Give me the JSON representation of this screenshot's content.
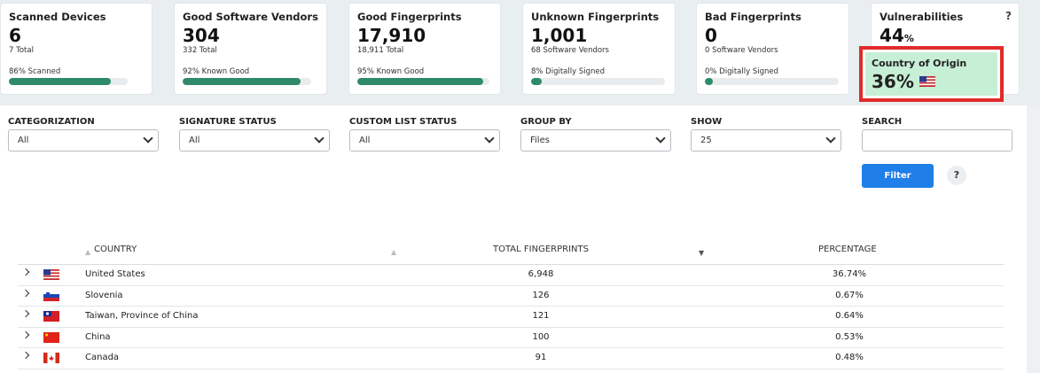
{
  "cards": [
    {
      "title": "Scanned Devices",
      "value": "6",
      "sub": "7 Total",
      "progress_label": "86% Scanned",
      "progress": 0.86
    },
    {
      "title": "Good Software Vendors",
      "value": "304",
      "sub": "332 Total",
      "progress_label": "92% Known Good",
      "progress": 0.92
    },
    {
      "title": "Good Fingerprints",
      "value": "17,910",
      "sub": "18,911 Total",
      "progress_label": "95% Known Good",
      "progress": 0.95
    },
    {
      "title": "Unknown Fingerprints",
      "value": "1,001",
      "sub": "68 Software Vendors",
      "progress_label": "8% Digitally Signed",
      "progress": 0.08
    },
    {
      "title": "Bad Fingerprints",
      "value": "0",
      "sub": "0 Software Vendors",
      "progress_label": "0% Digitally Signed",
      "progress": 0.0
    }
  ],
  "vulnerabilities": {
    "title": "Vulnerabilities",
    "value": "44",
    "unit": "%",
    "help": "?"
  },
  "origin": {
    "title": "Country of Origin",
    "value": "36",
    "unit": "%",
    "flag_icon": "us-flag-icon"
  },
  "filters": {
    "categorization": {
      "label": "CATEGORIZATION",
      "value": "All"
    },
    "signature_status": {
      "label": "SIGNATURE STATUS",
      "value": "All"
    },
    "custom_list_status": {
      "label": "CUSTOM LIST STATUS",
      "value": "All"
    },
    "group_by": {
      "label": "GROUP BY",
      "value": "Files"
    },
    "show": {
      "label": "SHOW",
      "value": "25"
    },
    "search": {
      "label": "SEARCH",
      "value": ""
    },
    "filter_button": "Filter",
    "help": "?"
  },
  "table": {
    "headers": {
      "country": "COUNTRY",
      "total": "TOTAL FINGERPRINTS",
      "percentage": "PERCENTAGE"
    },
    "rows": [
      {
        "country": "United States",
        "total": "6,948",
        "percentage": "36.74%",
        "flag": "us"
      },
      {
        "country": "Slovenia",
        "total": "126",
        "percentage": "0.67%",
        "flag": "si"
      },
      {
        "country": "Taiwan, Province of China",
        "total": "121",
        "percentage": "0.64%",
        "flag": "tw"
      },
      {
        "country": "China",
        "total": "100",
        "percentage": "0.53%",
        "flag": "cn"
      },
      {
        "country": "Canada",
        "total": "91",
        "percentage": "0.48%",
        "flag": "ca"
      }
    ]
  },
  "colors": {
    "accent": "#1f7ee8",
    "progress": "#2e8a6a",
    "highlight_border": "#e02a2a",
    "highlight_bg": "#c7efd6"
  }
}
